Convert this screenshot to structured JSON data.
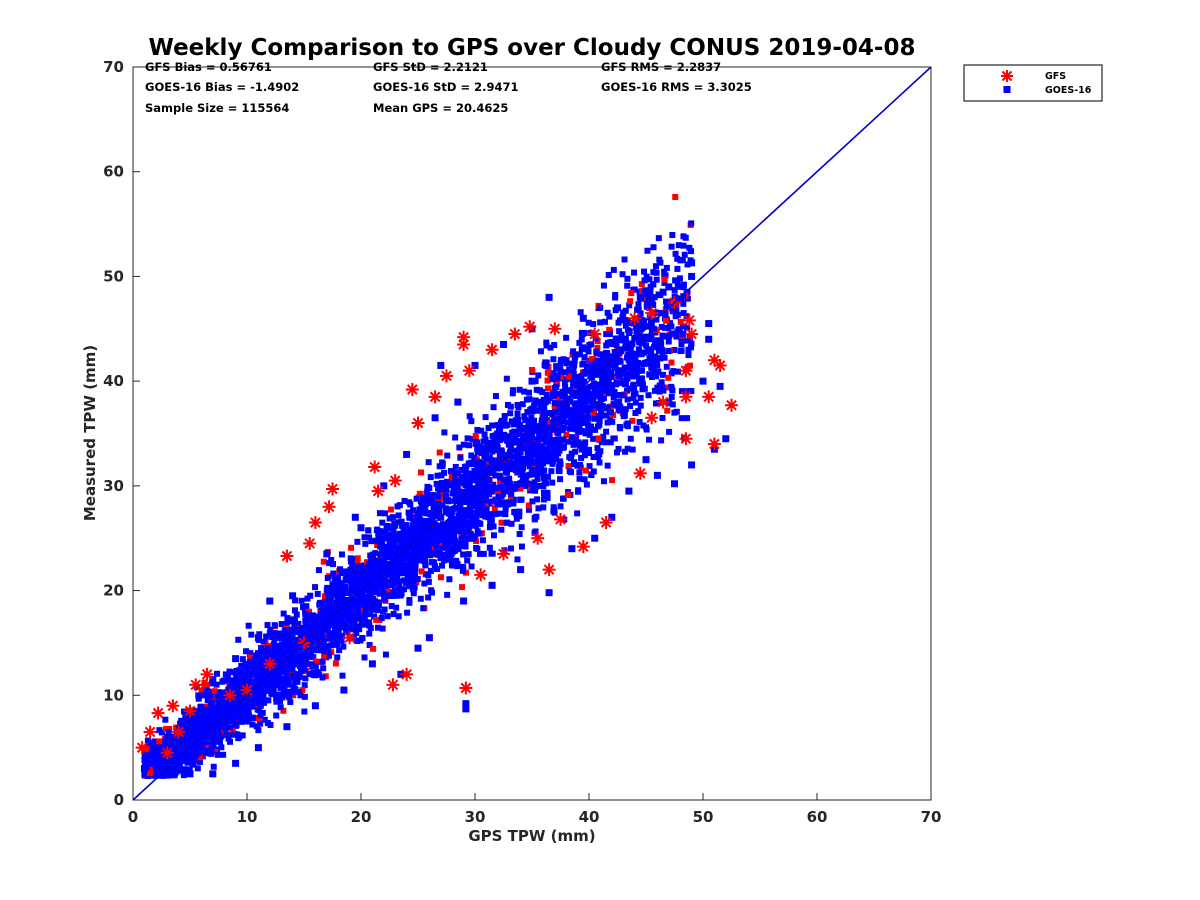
{
  "chart_data": {
    "type": "scatter",
    "title": "Weekly Comparison to GPS over Cloudy CONUS 2019-04-08",
    "xlabel": "GPS TPW (mm)",
    "ylabel": "Measured TPW (mm)",
    "xlim": [
      0,
      70
    ],
    "ylim": [
      0,
      70
    ],
    "xticks": [
      "0",
      "10",
      "20",
      "30",
      "40",
      "50",
      "60",
      "70"
    ],
    "yticks": [
      "0",
      "10",
      "20",
      "30",
      "40",
      "50",
      "60",
      "70"
    ],
    "grid": false,
    "legend_position": "outside-top-right",
    "stats": [
      "GFS Bias = 0.56761",
      "GFS StD = 2.2121",
      "GFS RMS = 2.2837",
      "GOES-16 Bias = -1.4902",
      "GOES-16 StD = 2.9471",
      "GOES-16 RMS = 3.3025",
      "Sample Size = 115564",
      "Mean GPS = 20.4625"
    ],
    "reference_line": {
      "x": [
        0,
        70
      ],
      "y": [
        0,
        70
      ],
      "color": "#0000cc"
    },
    "series": [
      {
        "name": "GFS",
        "marker": "asterisk",
        "color": "#ff0000",
        "points": [
          [
            0.8,
            5.0
          ],
          [
            1.5,
            6.5
          ],
          [
            2.2,
            8.3
          ],
          [
            3.5,
            9.0
          ],
          [
            5.5,
            11.0
          ],
          [
            6.5,
            12.0
          ],
          [
            13.5,
            23.3
          ],
          [
            15.5,
            24.5
          ],
          [
            16.0,
            26.5
          ],
          [
            17.2,
            28.0
          ],
          [
            17.5,
            29.7
          ],
          [
            21.5,
            29.5
          ],
          [
            21.2,
            31.8
          ],
          [
            23.0,
            30.5
          ],
          [
            24.5,
            39.2
          ],
          [
            25.0,
            36.0
          ],
          [
            26.5,
            38.5
          ],
          [
            27.5,
            40.5
          ],
          [
            29.0,
            44.2
          ],
          [
            29.0,
            43.5
          ],
          [
            29.5,
            41.0
          ],
          [
            31.5,
            43.0
          ],
          [
            33.5,
            44.5
          ],
          [
            34.8,
            45.2
          ],
          [
            37.0,
            45.0
          ],
          [
            40.5,
            44.5
          ],
          [
            44.0,
            46.0
          ],
          [
            45.5,
            46.5
          ],
          [
            47.5,
            47.5
          ],
          [
            48.8,
            45.8
          ],
          [
            49.0,
            44.5
          ],
          [
            48.5,
            41.0
          ],
          [
            48.5,
            38.5
          ],
          [
            50.5,
            38.5
          ],
          [
            51.0,
            42.0
          ],
          [
            51.5,
            41.5
          ],
          [
            52.5,
            37.7
          ],
          [
            51.0,
            34.0
          ],
          [
            48.5,
            34.5
          ],
          [
            46.5,
            38.0
          ],
          [
            45.5,
            36.5
          ],
          [
            44.5,
            31.2
          ],
          [
            41.5,
            26.5
          ],
          [
            39.5,
            24.2
          ],
          [
            37.5,
            26.8
          ],
          [
            36.5,
            22.0
          ],
          [
            35.5,
            25.0
          ],
          [
            32.5,
            23.5
          ],
          [
            30.5,
            21.5
          ],
          [
            29.2,
            10.7
          ],
          [
            22.8,
            11.0
          ],
          [
            24.0,
            12.0
          ],
          [
            19.0,
            15.5
          ],
          [
            15.0,
            15.0
          ],
          [
            12.0,
            13.0
          ],
          [
            10.0,
            10.5
          ],
          [
            8.5,
            10.0
          ],
          [
            5.0,
            8.5
          ],
          [
            4.0,
            6.5
          ],
          [
            3.0,
            4.5
          ]
        ]
      },
      {
        "name": "GOES-16",
        "marker": "square",
        "color": "#0000ff",
        "points": [
          [
            1.0,
            3.0
          ],
          [
            2.0,
            3.5
          ],
          [
            3.0,
            6.0
          ],
          [
            5.0,
            8.5
          ],
          [
            7.0,
            11.5
          ],
          [
            9.0,
            13.5
          ],
          [
            11.0,
            15.5
          ],
          [
            14.0,
            19.5
          ],
          [
            17.0,
            23.5
          ],
          [
            19.5,
            27.0
          ],
          [
            22.0,
            30.0
          ],
          [
            24.0,
            33.0
          ],
          [
            26.5,
            36.5
          ],
          [
            28.5,
            38.0
          ],
          [
            27.0,
            41.5
          ],
          [
            30.0,
            41.5
          ],
          [
            32.5,
            43.5
          ],
          [
            35.0,
            45.0
          ],
          [
            36.5,
            48.0
          ],
          [
            39.5,
            46.0
          ],
          [
            42.5,
            47.0
          ],
          [
            44.5,
            48.0
          ],
          [
            46.5,
            48.5
          ],
          [
            47.0,
            49.0
          ],
          [
            49.0,
            51.3
          ],
          [
            49.0,
            50.0
          ],
          [
            50.5,
            45.5
          ],
          [
            50.5,
            44.0
          ],
          [
            50.0,
            40.0
          ],
          [
            51.5,
            39.5
          ],
          [
            52.0,
            34.5
          ],
          [
            51.0,
            33.5
          ],
          [
            49.0,
            32.0
          ],
          [
            47.5,
            30.2
          ],
          [
            46.0,
            31.0
          ],
          [
            45.0,
            32.5
          ],
          [
            43.5,
            29.5
          ],
          [
            42.0,
            27.0
          ],
          [
            40.5,
            25.0
          ],
          [
            38.5,
            24.0
          ],
          [
            36.5,
            19.8
          ],
          [
            34.0,
            22.0
          ],
          [
            31.5,
            20.5
          ],
          [
            29.0,
            19.0
          ],
          [
            29.2,
            8.7
          ],
          [
            29.2,
            9.2
          ],
          [
            26.0,
            15.5
          ],
          [
            25.0,
            14.5
          ],
          [
            23.5,
            12.0
          ],
          [
            21.0,
            13.0
          ],
          [
            18.5,
            10.5
          ],
          [
            16.0,
            9.0
          ],
          [
            13.5,
            7.0
          ],
          [
            11.0,
            5.0
          ],
          [
            9.0,
            3.5
          ],
          [
            7.0,
            2.5
          ],
          [
            5.0,
            2.5
          ],
          [
            3.0,
            2.8
          ],
          [
            12.0,
            19.0
          ],
          [
            20.0,
            26.0
          ],
          [
            35.0,
            40.0
          ]
        ]
      }
    ]
  },
  "legend": {
    "items": [
      {
        "label": "GFS",
        "color": "#ff0000",
        "marker": "asterisk"
      },
      {
        "label": "GOES-16",
        "color": "#0000ff",
        "marker": "square"
      }
    ]
  }
}
